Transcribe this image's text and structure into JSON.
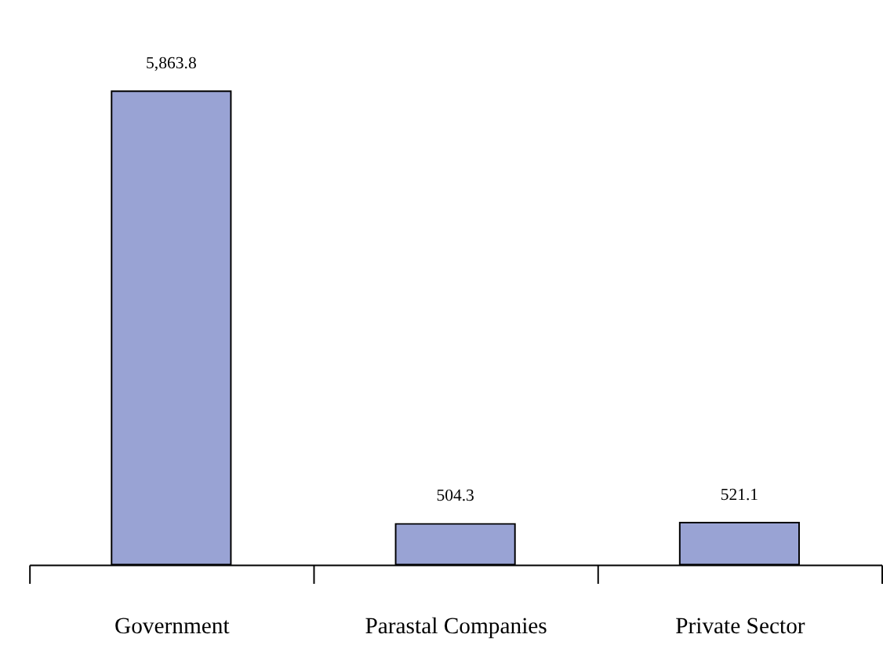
{
  "chart_data": {
    "type": "bar",
    "categories": [
      "Government",
      "Parastal Companies",
      "Private Sector"
    ],
    "values": [
      5863.8,
      504.3,
      521.1
    ],
    "value_labels": [
      "5,863.8",
      "504.3",
      "521.1"
    ],
    "color": "#99a3d4"
  }
}
